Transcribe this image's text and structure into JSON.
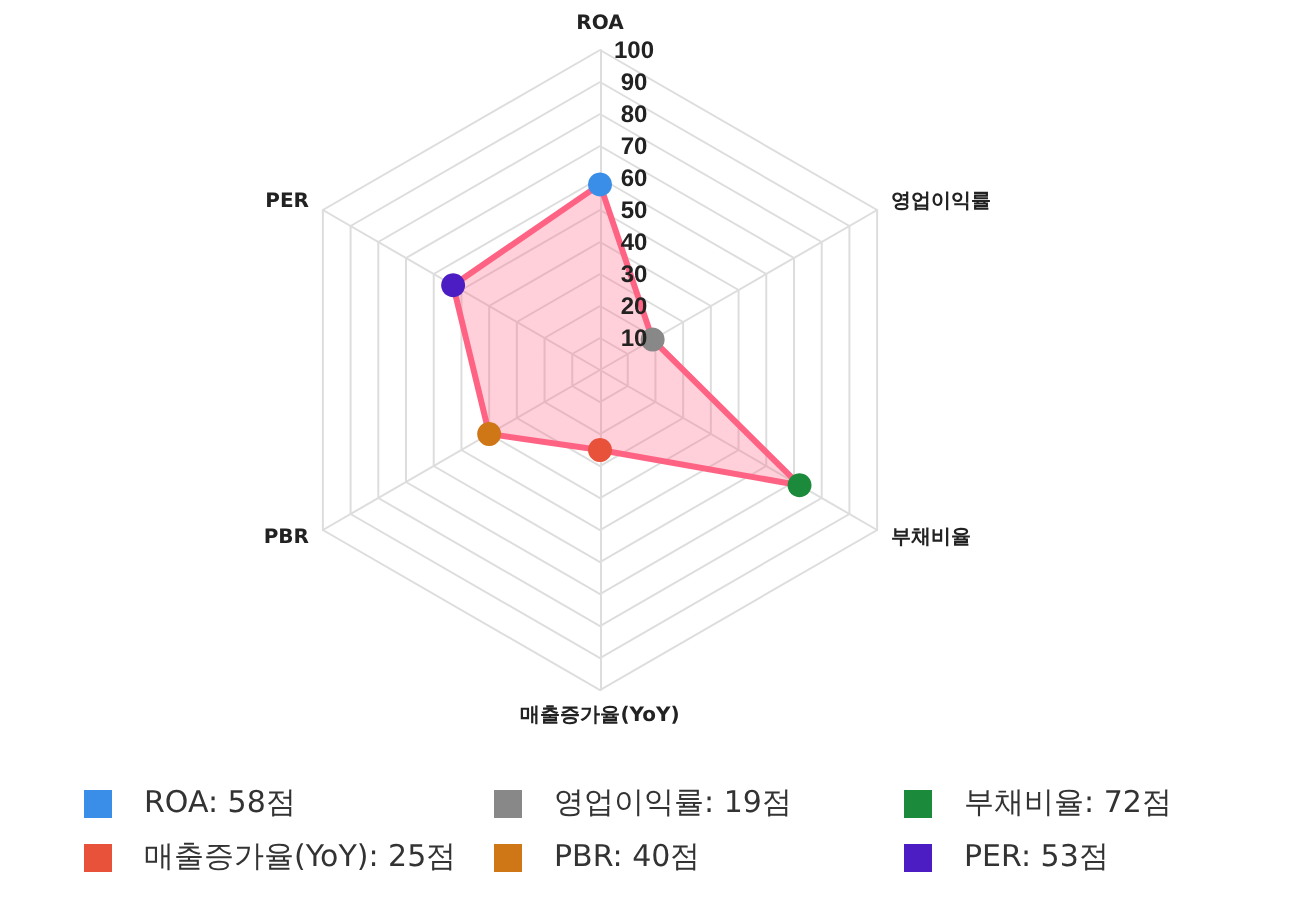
{
  "chart_data": {
    "type": "radar",
    "categories": [
      "ROA",
      "영업이익률",
      "부채비율",
      "매출증가율(YoY)",
      "PBR",
      "PER"
    ],
    "series": [
      {
        "color": "#ff6384",
        "values": [
          58,
          19,
          72,
          25,
          40,
          53
        ],
        "colors": [
          "#3b8ee8",
          "#888888",
          "#1b8a3a",
          "#e8513a",
          "#cf7617",
          "#4d1dc4"
        ]
      }
    ],
    "annotations": [
      "ROA: 58점",
      "영업이익률: 19점",
      "부채비율: 72점",
      "매출증가율(YoY): 25점",
      "PBR: 40점",
      "PER: 53점"
    ],
    "ylim": [
      0,
      100
    ],
    "yticks": [
      10,
      20,
      30,
      40,
      50,
      60,
      70,
      80,
      90,
      100
    ],
    "marker": "circle"
  }
}
